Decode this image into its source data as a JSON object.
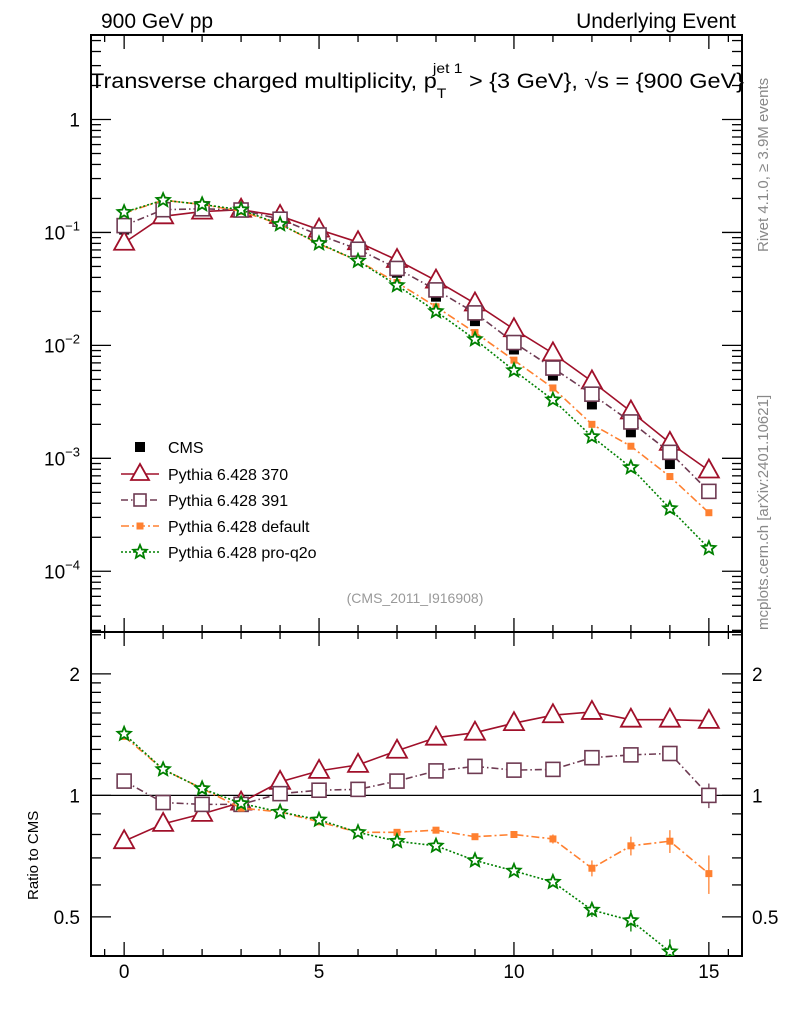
{
  "header": {
    "left": "900 GeV pp",
    "right": "Underlying Event"
  },
  "side_text": {
    "rivet": "Rivet 4.1.0, ≥ 3.9M events",
    "mcplots": "mcplots.cern.ch [arXiv:2401.10621]"
  },
  "chart_data": [
    {
      "type": "line",
      "panel": "main",
      "title": "Transverse charged multiplicity, p_T^{jet 1} > {3 GeV}, √s = {900 GeV}",
      "title_parts": {
        "main": "Transverse charged multiplicity, p",
        "sub": "T",
        "sup": "jet 1",
        "rest": " > {3 GeV}, √s = {900 GeV}"
      },
      "analysis_label": "(CMS_2011_I916908)",
      "xlabel": "",
      "ylabel": "",
      "x_scale": "linear",
      "y_scale": "log",
      "xlim": [
        -0.85,
        15.85
      ],
      "ylim": [
        2.9e-05,
        5.6
      ],
      "y_ticks": [
        {
          "v": 1,
          "label": "1"
        },
        {
          "v": 0.1,
          "label": "10",
          "exp": "−1"
        },
        {
          "v": 0.01,
          "label": "10",
          "exp": "−2"
        },
        {
          "v": 0.001,
          "label": "10",
          "exp": "−3"
        },
        {
          "v": 0.0001,
          "label": "10",
          "exp": "−4"
        }
      ],
      "legend_position": "bottom-left",
      "x": [
        0,
        1,
        2,
        3,
        4,
        5,
        6,
        7,
        8,
        9,
        10,
        11,
        12,
        13,
        14,
        15
      ],
      "series": [
        {
          "name": "CMS",
          "color": "#000000",
          "values": [
            0.106,
            0.166,
            0.17,
            0.166,
            0.13,
            0.092,
            0.069,
            0.044,
            0.027,
            0.0164,
            0.0092,
            0.0054,
            0.003,
            0.0017,
            0.00089,
            0.00051
          ]
        },
        {
          "name": "Pythia 6.428 370",
          "color": "#a0102a",
          "values": [
            0.081,
            0.139,
            0.153,
            0.159,
            0.14,
            0.106,
            0.082,
            0.057,
            0.0375,
            0.0235,
            0.0139,
            0.0085,
            0.0048,
            0.0026,
            0.00137,
            0.00078
          ]
        },
        {
          "name": "Pythia 6.428 391",
          "color": "#6e3a52",
          "values": [
            0.115,
            0.159,
            0.162,
            0.158,
            0.131,
            0.095,
            0.071,
            0.048,
            0.031,
            0.0194,
            0.0106,
            0.0063,
            0.0037,
            0.0021,
            0.00113,
            0.00051
          ]
        },
        {
          "name": "Pythia 6.428 default",
          "color": "#ff8030",
          "values": [
            0.148,
            0.193,
            0.177,
            0.154,
            0.118,
            0.079,
            0.056,
            0.036,
            0.022,
            0.013,
            0.0074,
            0.0042,
            0.002,
            0.00128,
            0.00069,
            0.00033
          ]
        },
        {
          "name": "Pythia 6.428 pro-q2o",
          "color": "#008000",
          "values": [
            0.151,
            0.193,
            0.177,
            0.159,
            0.118,
            0.08,
            0.056,
            0.034,
            0.02,
            0.0113,
            0.006,
            0.0033,
            0.00156,
            0.00083,
            0.00036,
            0.00016
          ]
        }
      ]
    },
    {
      "type": "line",
      "panel": "ratio",
      "ylabel": "Ratio to CMS",
      "y_scale": "log",
      "xlim": [
        -0.85,
        15.85
      ],
      "ylim": [
        0.4,
        2.54
      ],
      "x_ticks": [
        {
          "v": 0,
          "label": "0"
        },
        {
          "v": 5,
          "label": "5"
        },
        {
          "v": 10,
          "label": "10"
        },
        {
          "v": 15,
          "label": "15"
        }
      ],
      "y_ticks": [
        {
          "v": 0.5,
          "label": "0.5"
        },
        {
          "v": 1,
          "label": "1"
        },
        {
          "v": 2,
          "label": "2"
        }
      ],
      "x": [
        0,
        1,
        2,
        3,
        4,
        5,
        6,
        7,
        8,
        9,
        10,
        11,
        12,
        13,
        14,
        15
      ],
      "series": [
        {
          "name": "Pythia 6.428 370",
          "values": [
            0.77,
            0.85,
            0.9,
            0.96,
            1.08,
            1.15,
            1.19,
            1.29,
            1.39,
            1.43,
            1.51,
            1.58,
            1.61,
            1.54,
            1.54,
            1.53
          ],
          "errors": [
            0.01,
            0.01,
            0.01,
            0.01,
            0.01,
            0.01,
            0.01,
            0.01,
            0.01,
            0.01,
            0.01,
            0.01,
            0.02,
            0.04,
            0.05,
            0.06
          ]
        },
        {
          "name": "Pythia 6.428 391",
          "values": [
            1.085,
            0.96,
            0.95,
            0.95,
            1.01,
            1.03,
            1.035,
            1.085,
            1.15,
            1.18,
            1.155,
            1.16,
            1.24,
            1.26,
            1.27,
            1.0
          ],
          "errors": [
            0.01,
            0.01,
            0.01,
            0.01,
            0.01,
            0.01,
            0.01,
            0.01,
            0.01,
            0.01,
            0.01,
            0.01,
            0.02,
            0.03,
            0.05,
            0.07
          ]
        },
        {
          "name": "Pythia 6.428 default",
          "values": [
            1.4,
            1.16,
            1.04,
            0.93,
            0.91,
            0.86,
            0.81,
            0.81,
            0.82,
            0.79,
            0.8,
            0.78,
            0.66,
            0.75,
            0.77,
            0.64
          ],
          "errors": [
            0.01,
            0.01,
            0.01,
            0.01,
            0.01,
            0.01,
            0.01,
            0.01,
            0.01,
            0.01,
            0.01,
            0.02,
            0.03,
            0.04,
            0.05,
            0.07
          ]
        },
        {
          "name": "Pythia 6.428 pro-q2o",
          "values": [
            1.42,
            1.16,
            1.04,
            0.955,
            0.91,
            0.87,
            0.81,
            0.77,
            0.75,
            0.69,
            0.65,
            0.61,
            0.52,
            0.49,
            0.41,
            0.31
          ],
          "errors": [
            0.01,
            0.01,
            0.01,
            0.01,
            0.01,
            0.01,
            0.01,
            0.01,
            0.01,
            0.01,
            0.01,
            0.01,
            0.02,
            0.03,
            0.03,
            0.04
          ]
        }
      ]
    }
  ]
}
